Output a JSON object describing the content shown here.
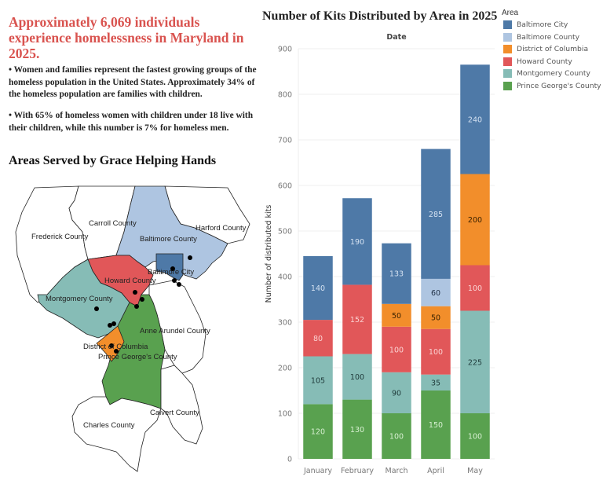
{
  "left_panel": {
    "headline": "Approximately 6,069 individuals experience homelessness in Maryland in 2025.",
    "bullets": [
      "• Women and families represent the fastest growing groups of the homeless population in the United States. Approximately 34% of the homeless population are families with children.",
      "• With 65% of homeless women with children under 18 live with their children, while this number is 7% for homeless men."
    ],
    "map_title": "Areas Served by Grace Helping Hands",
    "map": {
      "counties": [
        {
          "name": "Frederick County",
          "served": false
        },
        {
          "name": "Carroll County",
          "served": false
        },
        {
          "name": "Harford County",
          "served": false
        },
        {
          "name": "Baltimore County",
          "served": true,
          "color": "#aec5e1"
        },
        {
          "name": "Baltimore City",
          "served": true,
          "color": "#4e79a7"
        },
        {
          "name": "Howard County",
          "served": true,
          "color": "#e15759"
        },
        {
          "name": "Montgomery County",
          "served": true,
          "color": "#86bcb6"
        },
        {
          "name": "Anne Arundel County",
          "served": false
        },
        {
          "name": "District of Columbia",
          "served": true,
          "color": "#f28e2b"
        },
        {
          "name": "Prince George's County",
          "served": true,
          "color": "#59a14f"
        },
        {
          "name": "Calvert County",
          "served": false
        },
        {
          "name": "Charles County",
          "served": false
        }
      ]
    }
  },
  "chart_data": {
    "type": "bar",
    "stacked": true,
    "title": "Number of Kits Distributed by Area in 2025",
    "column_header": "Date",
    "xlabel": "",
    "ylabel": "Number of distributed kits",
    "ylim": [
      0,
      900
    ],
    "yticks": [
      0,
      100,
      200,
      300,
      400,
      500,
      600,
      700,
      800,
      900
    ],
    "grid": true,
    "legend_title": "Area",
    "legend_position": "right",
    "categories": [
      "January",
      "February",
      "March",
      "April",
      "May"
    ],
    "series": [
      {
        "name": "Prince George's County",
        "color": "#59a14f",
        "label_color": "#d8f0d2",
        "values": [
          120,
          130,
          100,
          150,
          100
        ]
      },
      {
        "name": "Montgomery County",
        "color": "#86bcb6",
        "label_color": "#1f3a3a",
        "values": [
          105,
          100,
          90,
          35,
          225
        ]
      },
      {
        "name": "Howard County",
        "color": "#e15759",
        "label_color": "#fbd3d3",
        "values": [
          80,
          152,
          100,
          100,
          100
        ]
      },
      {
        "name": "District of Columbia",
        "color": "#f28e2b",
        "label_color": "#3a2200",
        "values": [
          0,
          0,
          50,
          50,
          200
        ]
      },
      {
        "name": "Baltimore County",
        "color": "#aec5e1",
        "label_color": "#1f2f45",
        "values": [
          0,
          0,
          0,
          60,
          0
        ]
      },
      {
        "name": "Baltimore City",
        "color": "#4e79a7",
        "label_color": "#d5e2f2",
        "values": [
          140,
          190,
          133,
          285,
          240
        ]
      }
    ],
    "legend_order": [
      "Baltimore City",
      "Baltimore County",
      "District of Columbia",
      "Howard County",
      "Montgomery County",
      "Prince George's County"
    ]
  }
}
